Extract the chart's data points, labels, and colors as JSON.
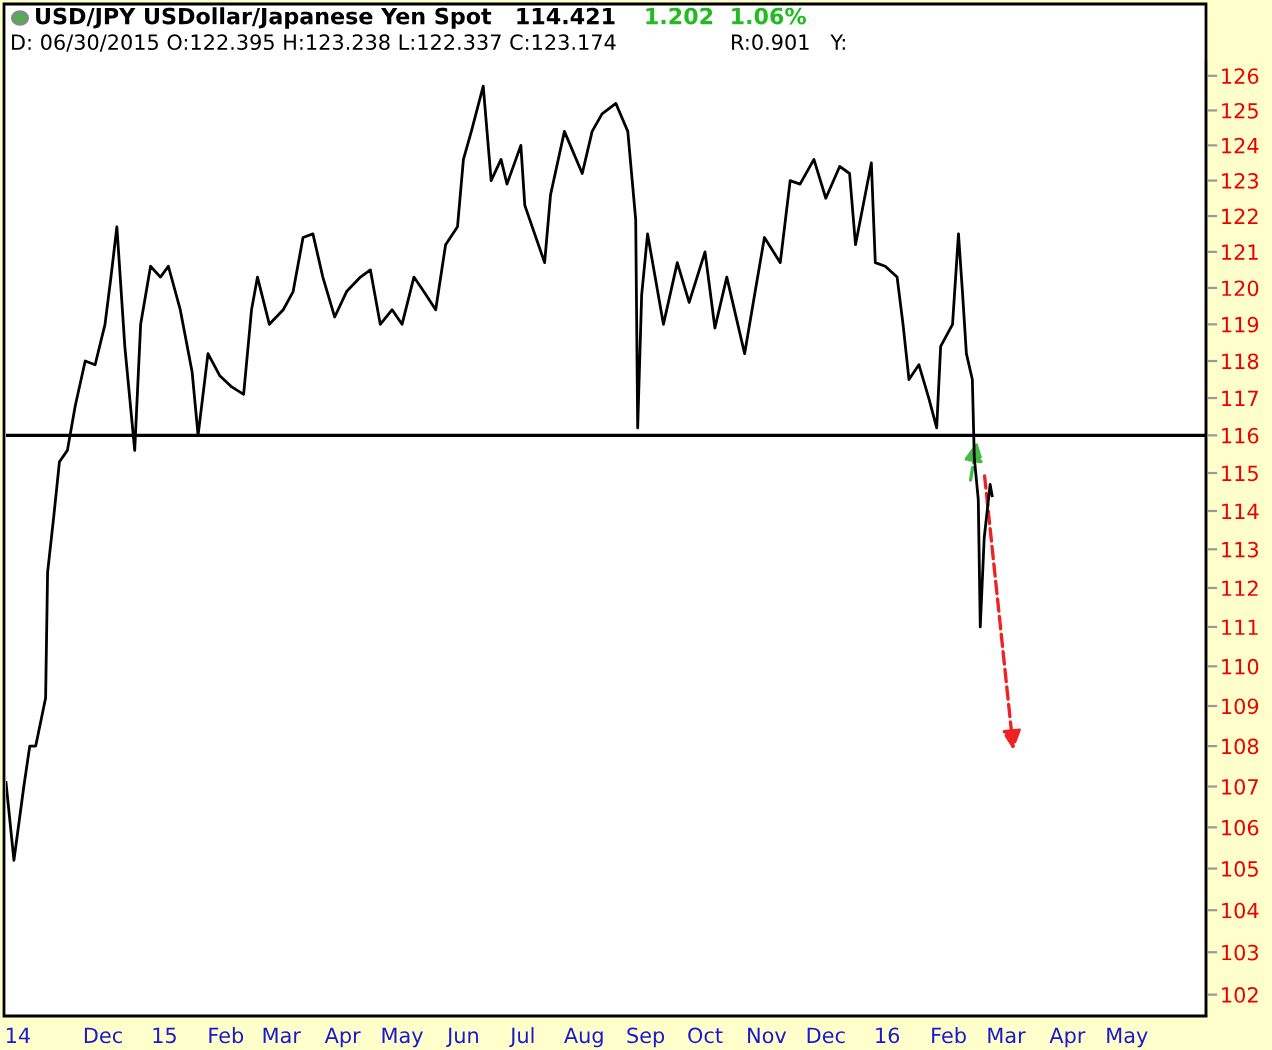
{
  "chart_data": {
    "type": "line",
    "title": "USD/JPY USDollar/Japanese Yen Spot   114.421",
    "annotations": [
      "1.202  1.06%",
      "D: 06/30/2015 O:122.395 H:123.238 L:122.337 C:123.174",
      "R:0.901   Y:"
    ],
    "x": [
      "2014-10-13",
      "2014-10-17",
      "2014-10-22",
      "2014-10-25",
      "2014-10-28",
      "2014-11-02",
      "2014-11-03",
      "2014-11-06",
      "2014-11-09",
      "2014-11-13",
      "2014-11-17",
      "2014-11-22",
      "2014-11-27",
      "2014-12-02",
      "2014-12-05",
      "2014-12-08",
      "2014-12-12",
      "2014-12-17",
      "2014-12-20",
      "2014-12-25",
      "2014-12-30",
      "2015-01-03",
      "2015-01-09",
      "2015-01-15",
      "2015-01-18",
      "2015-01-23",
      "2015-01-29",
      "2015-02-04",
      "2015-02-10",
      "2015-02-14",
      "2015-02-17",
      "2015-02-23",
      "2015-03-02",
      "2015-03-07",
      "2015-03-12",
      "2015-03-17",
      "2015-03-22",
      "2015-03-28",
      "2015-04-03",
      "2015-04-10",
      "2015-04-15",
      "2015-04-20",
      "2015-04-26",
      "2015-05-01",
      "2015-05-07",
      "2015-05-12",
      "2015-05-18",
      "2015-05-23",
      "2015-05-29",
      "2015-06-01",
      "2015-06-05",
      "2015-06-11",
      "2015-06-15",
      "2015-06-20",
      "2015-06-23",
      "2015-06-30",
      "2015-07-02",
      "2015-07-12",
      "2015-07-15",
      "2015-07-22",
      "2015-07-31",
      "2015-08-05",
      "2015-08-10",
      "2015-08-17",
      "2015-08-23",
      "2015-08-27",
      "2015-08-28",
      "2015-08-30",
      "2015-09-02",
      "2015-09-10",
      "2015-09-17",
      "2015-09-23",
      "2015-10-01",
      "2015-10-06",
      "2015-10-12",
      "2015-10-21",
      "2015-10-26",
      "2015-10-31",
      "2015-11-08",
      "2015-11-13",
      "2015-11-18",
      "2015-11-25",
      "2015-12-01",
      "2015-12-08",
      "2015-12-13",
      "2015-12-16",
      "2015-12-24",
      "2015-12-26",
      "2015-12-31",
      "2016-01-06",
      "2016-01-09",
      "2016-01-12",
      "2016-01-17",
      "2016-01-22",
      "2016-01-26",
      "2016-01-28",
      "2016-02-03",
      "2016-02-06",
      "2016-02-08",
      "2016-02-10",
      "2016-02-13",
      "2016-02-14",
      "2016-02-16",
      "2016-02-17",
      "2016-02-19",
      "2016-02-22",
      "2016-02-23"
    ],
    "series": [
      {
        "color": "#000000",
        "values": [
          107.1,
          105.2,
          107,
          108,
          108,
          109.2,
          112.4,
          113.8,
          115.3,
          115.6,
          116.8,
          118,
          117.9,
          119,
          120.3,
          121.7,
          118.4,
          115.6,
          119,
          120.6,
          120.3,
          120.6,
          119.4,
          117.7,
          116,
          118.2,
          117.6,
          117.3,
          117.1,
          119.4,
          120.3,
          119,
          119.4,
          119.9,
          121.4,
          121.5,
          120.3,
          119.2,
          119.9,
          120.3,
          120.5,
          119,
          119.4,
          119,
          120.3,
          119.9,
          119.4,
          121.2,
          121.7,
          123.6,
          124.4,
          125.7,
          123,
          123.6,
          122.9,
          124,
          122.3,
          120.7,
          122.6,
          124.4,
          123.2,
          124.4,
          124.9,
          125.2,
          124.4,
          121.9,
          116.2,
          119.8,
          121.5,
          119,
          120.7,
          119.6,
          121,
          118.9,
          120.3,
          118.2,
          119.8,
          121.4,
          120.7,
          123,
          122.9,
          123.6,
          122.5,
          123.4,
          123.2,
          121.2,
          123.5,
          120.7,
          120.6,
          120.3,
          119,
          117.5,
          117.9,
          117,
          116.2,
          118.4,
          119,
          121.5,
          119.9,
          118.2,
          117.5,
          115.4,
          114.3,
          111,
          113.3,
          114.7,
          114.4
        ]
      }
    ],
    "line_style": "solid",
    "log": "y",
    "xlim": [
      "2014-10-13",
      "2016-06-10"
    ],
    "xticks": [
      {
        "value": "2014-10-19",
        "label": "14"
      },
      {
        "value": "2014-12-01",
        "label": "Dec"
      },
      {
        "value": "2015-01-01",
        "label": "15"
      },
      {
        "value": "2015-02-01",
        "label": "Feb"
      },
      {
        "value": "2015-03-01",
        "label": "Mar"
      },
      {
        "value": "2015-04-01",
        "label": "Apr"
      },
      {
        "value": "2015-05-01",
        "label": "May"
      },
      {
        "value": "2015-06-01",
        "label": "Jun"
      },
      {
        "value": "2015-07-01",
        "label": "Jul"
      },
      {
        "value": "2015-08-01",
        "label": "Aug"
      },
      {
        "value": "2015-09-01",
        "label": "Sep"
      },
      {
        "value": "2015-10-01",
        "label": "Oct"
      },
      {
        "value": "2015-11-01",
        "label": "Nov"
      },
      {
        "value": "2015-12-01",
        "label": "Dec"
      },
      {
        "value": "2016-01-01",
        "label": "16"
      },
      {
        "value": "2016-02-01",
        "label": "Feb"
      },
      {
        "value": "2016-03-01",
        "label": "Mar"
      },
      {
        "value": "2016-04-01",
        "label": "Apr"
      },
      {
        "value": "2016-05-01",
        "label": "May"
      }
    ],
    "ylim": [
      101.5,
      126.4
    ],
    "yticks": [
      102,
      103,
      104,
      105,
      106,
      107,
      108,
      109,
      110,
      111,
      112,
      113,
      114,
      115,
      116,
      117,
      118,
      119,
      120,
      121,
      122,
      123,
      124,
      125,
      126
    ],
    "ref_lines": [
      {
        "axis": "y",
        "value": 116,
        "color": "#000000"
      }
    ],
    "grid": false,
    "legend": false
  }
}
